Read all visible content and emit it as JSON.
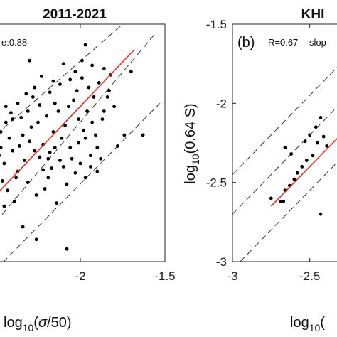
{
  "chart_data": [
    {
      "type": "scatter",
      "title": "2011-2021",
      "annotation": "e:0.88",
      "xlabel": "log10(σ/50)",
      "xlim": [
        -2.5,
        -1.5
      ],
      "ylim": [
        -3.0,
        -1.5
      ],
      "xticks": [
        "-2",
        "-1.5"
      ],
      "xtick_values": [
        -2.0,
        -1.5
      ],
      "fit_line": [
        [
          -2.5,
          -2.58
        ],
        [
          -1.68,
          -1.66
        ]
      ],
      "ref_lines": [
        [
          [
            -2.5,
            -2.2
          ],
          [
            -1.75,
            -1.5
          ]
        ],
        [
          [
            -2.5,
            -2.75
          ],
          [
            -1.55,
            -1.55
          ]
        ],
        [
          [
            -2.5,
            -3.05
          ],
          [
            -1.53,
            -2.0
          ]
        ]
      ],
      "points": [
        [
          -2.46,
          -2.49
        ],
        [
          -2.43,
          -2.55
        ],
        [
          -2.38,
          -2.47
        ],
        [
          -2.33,
          -2.36
        ],
        [
          -2.39,
          -2.62
        ],
        [
          -2.22,
          -2.42
        ],
        [
          -2.19,
          -2.47
        ],
        [
          -2.17,
          -2.41
        ],
        [
          -2.48,
          -2.33
        ],
        [
          -2.45,
          -2.38
        ],
        [
          -2.4,
          -2.3
        ],
        [
          -2.36,
          -2.27
        ],
        [
          -2.42,
          -2.22
        ],
        [
          -2.34,
          -2.2
        ],
        [
          -2.29,
          -2.15
        ],
        [
          -2.25,
          -2.12
        ],
        [
          -2.2,
          -2.08
        ],
        [
          -2.16,
          -2.18
        ],
        [
          -2.11,
          -2.22
        ],
        [
          -2.09,
          -2.14
        ],
        [
          -2.13,
          -2.05
        ],
        [
          -2.07,
          -2.02
        ],
        [
          -2.04,
          -1.98
        ],
        [
          -2.01,
          -2.1
        ],
        [
          -1.98,
          -2.17
        ],
        [
          -1.96,
          -2.05
        ],
        [
          -1.93,
          -2.12
        ],
        [
          -1.9,
          -2.28
        ],
        [
          -1.88,
          -2.35
        ],
        [
          -1.86,
          -2.05
        ],
        [
          -1.84,
          -1.96
        ],
        [
          -2.26,
          -2.58
        ],
        [
          -2.21,
          -2.54
        ],
        [
          -2.14,
          -2.63
        ],
        [
          -2.08,
          -2.51
        ],
        [
          -2.03,
          -2.44
        ],
        [
          -2.0,
          -2.38
        ],
        [
          -1.97,
          -2.47
        ],
        [
          -1.94,
          -2.33
        ],
        [
          -1.91,
          -2.2
        ],
        [
          -2.31,
          -2.05
        ],
        [
          -2.28,
          -1.96
        ],
        [
          -2.24,
          -2.01
        ],
        [
          -2.18,
          -1.93
        ],
        [
          -2.15,
          -2.0
        ],
        [
          -2.12,
          -1.88
        ],
        [
          -2.06,
          -1.85
        ],
        [
          -2.02,
          -1.92
        ],
        [
          -1.99,
          -1.84
        ],
        [
          -1.95,
          -1.9
        ],
        [
          -1.92,
          -1.96
        ],
        [
          -1.89,
          -1.87
        ],
        [
          -1.83,
          -1.92
        ],
        [
          -1.8,
          -2.02
        ],
        [
          -1.78,
          -2.27
        ],
        [
          -1.74,
          -2.2
        ],
        [
          -1.82,
          -1.82
        ],
        [
          -1.86,
          -1.78
        ],
        [
          -1.93,
          -1.76
        ],
        [
          -1.99,
          -1.73
        ],
        [
          -2.03,
          -1.8
        ],
        [
          -2.1,
          -1.75
        ],
        [
          -2.16,
          -1.86
        ],
        [
          -2.23,
          -1.83
        ],
        [
          -2.27,
          -1.9
        ],
        [
          -2.32,
          -1.94
        ],
        [
          -2.37,
          -2.0
        ],
        [
          -2.41,
          -2.06
        ],
        [
          -2.44,
          -2.12
        ],
        [
          -2.47,
          -2.18
        ],
        [
          -2.37,
          -2.43
        ],
        [
          -2.31,
          -2.5
        ],
        [
          -2.24,
          -2.34
        ],
        [
          -2.18,
          -2.31
        ],
        [
          -2.12,
          -2.36
        ],
        [
          -2.06,
          -2.28
        ],
        [
          -2.01,
          -2.25
        ],
        [
          -1.97,
          -2.22
        ],
        [
          -1.94,
          -2.4
        ],
        [
          -1.9,
          -2.43
        ],
        [
          -2.47,
          -2.28
        ],
        [
          -2.44,
          -2.02
        ],
        [
          -2.35,
          -2.09
        ],
        [
          -2.3,
          -2.24
        ],
        [
          -2.27,
          -2.3
        ],
        [
          -2.22,
          -2.26
        ],
        [
          -2.19,
          -2.35
        ],
        [
          -2.15,
          -2.28
        ],
        [
          -2.1,
          -2.4
        ],
        [
          -2.05,
          -2.35
        ],
        [
          -2.34,
          -2.78
        ],
        [
          -2.45,
          -2.65
        ],
        [
          -1.63,
          -2.2
        ],
        [
          -1.7,
          -1.8
        ],
        [
          -1.97,
          -1.63
        ],
        [
          -2.3,
          -1.73
        ],
        [
          -2.08,
          -2.92
        ],
        [
          -2.26,
          -2.86
        ],
        [
          -2.4,
          -2.1
        ],
        [
          -1.87,
          -2.1
        ]
      ]
    },
    {
      "type": "scatter",
      "title": "KHI",
      "panel_label": "(b)",
      "annotation": "R=0.67",
      "annotation_2": "slop",
      "xlabel": "log10(",
      "ylabel": "log10(0.64 S)",
      "xlim": [
        -3.0,
        -2.25
      ],
      "ylim": [
        -3.0,
        -1.5
      ],
      "xticks": [
        "-3",
        "-2.5"
      ],
      "xtick_values": [
        -3.0,
        -2.5
      ],
      "yticks": [
        "-1.5",
        "-2",
        "-2.5",
        "-3"
      ],
      "ytick_values": [
        -1.5,
        -2.0,
        -2.5,
        -3.0
      ],
      "fit_line": [
        [
          -2.75,
          -2.65
        ],
        [
          -2.25,
          -2.15
        ]
      ],
      "ref_lines": [
        [
          [
            -3.0,
            -2.7
          ],
          [
            -2.25,
            -1.95
          ]
        ],
        [
          [
            -2.95,
            -3.0
          ],
          [
            -2.25,
            -2.3
          ]
        ],
        [
          [
            -3.0,
            -2.45
          ],
          [
            -2.25,
            -1.7
          ]
        ]
      ],
      "points": [
        [
          -2.75,
          -2.6
        ],
        [
          -2.69,
          -2.62
        ],
        [
          -2.66,
          -2.55
        ],
        [
          -2.63,
          -2.52
        ],
        [
          -2.6,
          -2.48
        ],
        [
          -2.58,
          -2.44
        ],
        [
          -2.55,
          -2.4
        ],
        [
          -2.52,
          -2.36
        ],
        [
          -2.5,
          -2.2
        ],
        [
          -2.48,
          -2.33
        ],
        [
          -2.45,
          -2.25
        ],
        [
          -2.62,
          -2.32
        ],
        [
          -2.66,
          -2.28
        ],
        [
          -2.53,
          -2.24
        ],
        [
          -2.46,
          -2.15
        ],
        [
          -2.43,
          -2.09
        ],
        [
          -2.41,
          -2.21
        ],
        [
          -2.39,
          -2.27
        ],
        [
          -2.67,
          -2.62
        ],
        [
          -2.43,
          -2.7
        ]
      ]
    }
  ]
}
